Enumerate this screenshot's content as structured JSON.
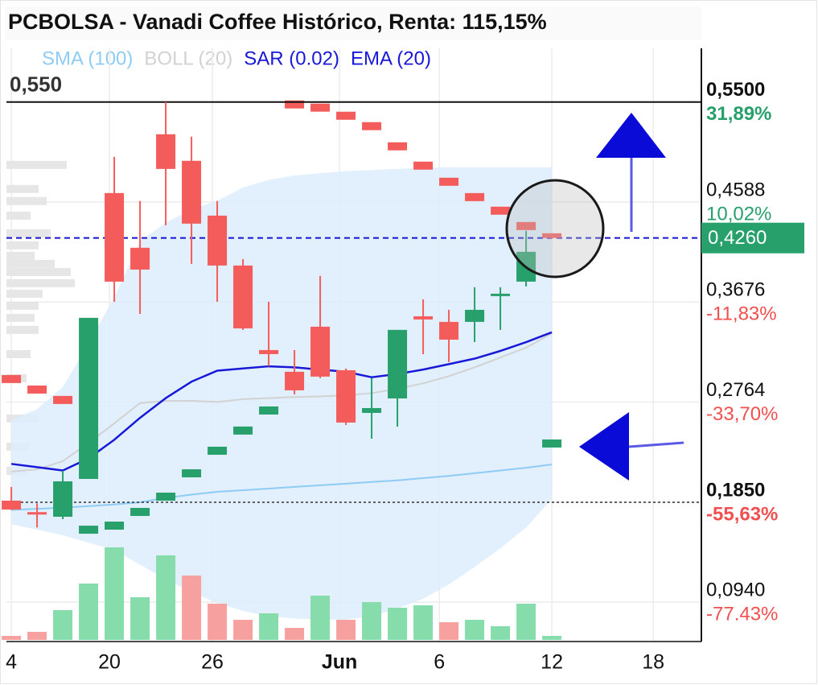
{
  "chart_data": {
    "type": "candlestick",
    "title": "PCBOLSA - Vanadi Coffee Histórico, Renta: 115,15%",
    "x": [
      0,
      1,
      2,
      3,
      4,
      5,
      6,
      7,
      8,
      9,
      10,
      11,
      12,
      13,
      14,
      15,
      16,
      17,
      18,
      19,
      20,
      21
    ],
    "open": [
      0.1865,
      0.176,
      0.1718,
      0.2063,
      0.467,
      0.4171,
      0.5206,
      0.4964,
      0.4464,
      0.4009,
      0.3238,
      0.304,
      0.3451,
      0.3054,
      0.2665,
      0.2797,
      0.3546,
      0.3495,
      0.3495,
      0.373,
      0.3862,
      0.4303
    ],
    "high": [
      0.199,
      0.184,
      0.2137,
      0.3532,
      0.5,
      0.4597,
      0.55,
      0.5184,
      0.4597,
      0.4068,
      0.3679,
      0.3238,
      0.3914,
      0.3069,
      0.2981,
      0.3422,
      0.3701,
      0.3605,
      0.3811,
      0.3811,
      0.4325,
      0.4303
    ],
    "low": [
      0.178,
      0.162,
      0.1696,
      0.2063,
      0.3679,
      0.3568,
      0.4376,
      0.4024,
      0.3679,
      0.3422,
      0.3091,
      0.2834,
      0.2981,
      0.2555,
      0.243,
      0.254,
      0.3201,
      0.3128,
      0.3311,
      0.3422,
      0.3818,
      0.4251
    ],
    "close": [
      0.1784,
      0.175,
      0.2041,
      0.3532,
      0.3862,
      0.3972,
      0.489,
      0.4391,
      0.4009,
      0.3436,
      0.3201,
      0.2871,
      0.2996,
      0.2577,
      0.2709,
      0.3422,
      0.3517,
      0.3333,
      0.3605,
      0.3752,
      0.4134,
      0.426
    ],
    "up_color": "#27a06c",
    "down_color": "#f45b5b",
    "series": [
      {
        "name": "SMA (100)",
        "color": "#8ecbf5",
        "values": [
          0.178,
          0.179,
          0.18,
          0.1815,
          0.183,
          0.185,
          0.189,
          0.192,
          0.1945,
          0.196,
          0.1975,
          0.199,
          0.2005,
          0.202,
          0.2035,
          0.205,
          0.207,
          0.209,
          0.2115,
          0.214,
          0.2165,
          0.2195
        ]
      },
      {
        "name": "BOLL (20)",
        "color": "#d2d2d2",
        "fill": "#dcedfb",
        "upper": [
          0.26,
          0.27,
          0.29,
          0.33,
          0.372,
          0.423,
          0.44,
          0.452,
          0.46,
          0.472,
          0.479,
          0.483,
          0.485,
          0.487,
          0.488,
          0.489,
          0.49,
          0.4905,
          0.4905,
          0.4905,
          0.4905,
          0.4905
        ],
        "middle": [
          0.213,
          0.215,
          0.2225,
          0.239,
          0.257,
          0.2755,
          0.2775,
          0.2775,
          0.2765,
          0.279,
          0.28,
          0.281,
          0.2815,
          0.2825,
          0.2845,
          0.2885,
          0.2935,
          0.3,
          0.308,
          0.317,
          0.326,
          0.339
        ],
        "lower": [
          0.165,
          0.16,
          0.155,
          0.148,
          0.142,
          0.128,
          0.115,
          0.103,
          0.093,
          0.086,
          0.081,
          0.079,
          0.078,
          0.078,
          0.081,
          0.088,
          0.097,
          0.11,
          0.126,
          0.143,
          0.162,
          0.188
        ]
      },
      {
        "name": "SAR (0.02)",
        "color": "#1818d8",
        "values": [
          0.2974,
          0.2878,
          0.2783,
          0.16,
          0.1637,
          0.1762,
          0.1901,
          0.2114,
          0.232,
          0.2504,
          0.2687,
          0.5478,
          0.5449,
          0.5375,
          0.528,
          0.5096,
          0.492,
          0.4773,
          0.4633,
          0.4509,
          0.4369,
          0.2386
        ]
      },
      {
        "name": "EMA (20)",
        "color": "#1818d8",
        "values": [
          0.22,
          0.217,
          0.214,
          0.225,
          0.242,
          0.262,
          0.28,
          0.295,
          0.305,
          0.307,
          0.309,
          0.308,
          0.306,
          0.304,
          0.299,
          0.302,
          0.306,
          0.311,
          0.316,
          0.323,
          0.331,
          0.34
        ]
      }
    ],
    "volume": {
      "values": [
        5,
        10,
        37,
        70,
        115,
        53,
        105,
        80,
        45,
        25,
        33,
        15,
        55,
        25,
        47,
        40,
        43,
        22,
        25,
        17,
        45,
        5
      ],
      "colors": [
        "#f7a0a0",
        "#f7a0a0",
        "#86dcab",
        "#86dcab",
        "#86dcab",
        "#86dcab",
        "#86dcab",
        "#f7a0a0",
        "#f7a0a0",
        "#f7a0a0",
        "#86dcab",
        "#f7a0a0",
        "#86dcab",
        "#f7a0a0",
        "#86dcab",
        "#86dcab",
        "#86dcab",
        "#f7a0a0",
        "#86dcab",
        "#86dcab",
        "#86dcab",
        "#86dcab"
      ]
    },
    "volume_profile": {
      "color": "#e6e6e6",
      "prices": [
        0.4927,
        0.4707,
        0.4597,
        0.4464,
        0.4303,
        0.4193,
        0.4097,
        0.4024,
        0.395,
        0.3848,
        0.3752,
        0.3642,
        0.3532,
        0.3422,
        0.3201,
        0.2981,
        0.2614,
        0.2357,
        0.2136
      ],
      "values": [
        75,
        40,
        50,
        30,
        55,
        40,
        35,
        60,
        80,
        85,
        45,
        40,
        35,
        40,
        30,
        25,
        40,
        30,
        25
      ]
    },
    "xlim": [
      -0.19,
      26.81
    ],
    "xticks": [
      {
        "value": 0,
        "label": "4"
      },
      {
        "value": 3.81,
        "label": "20"
      },
      {
        "value": 7.81,
        "label": "26"
      },
      {
        "value": 12.75,
        "label": "Jun"
      },
      {
        "value": 16.63,
        "label": "6"
      },
      {
        "value": 21,
        "label": "12"
      },
      {
        "value": 24.94,
        "label": "18"
      }
    ],
    "ylim": [
      0.058,
      0.599
    ],
    "yticks": [
      {
        "value": 0.55,
        "label": "0,5500"
      },
      {
        "value": 0.4588,
        "label": "0,4588"
      },
      {
        "value": 0.3676,
        "label": "0,3676"
      },
      {
        "value": 0.2764,
        "label": "0,2764"
      },
      {
        "value": 0.185,
        "label": "0,1850"
      },
      {
        "value": 0.094,
        "label": "0,0940"
      }
    ],
    "ytick_changes": [
      {
        "value": 31.89,
        "label": "31,89%"
      },
      {
        "value": 10.02,
        "label": "10,02%"
      },
      {
        "value": -11.83,
        "label": "-11,83%"
      },
      {
        "value": -33.7,
        "label": "-33,70%"
      },
      {
        "value": -55.63,
        "label": "-55,63%"
      },
      {
        "value": -77.43,
        "label": "-77.43%"
      }
    ],
    "positive_color": "#27a06c",
    "negative_color": "#f0504f",
    "last_price": {
      "value": 0.426,
      "label": "0,4260",
      "color": "#27a06c"
    },
    "high_line": {
      "value": 0.55,
      "label": "0,550"
    },
    "low_line": {
      "value": 0.185
    },
    "grid": true
  }
}
